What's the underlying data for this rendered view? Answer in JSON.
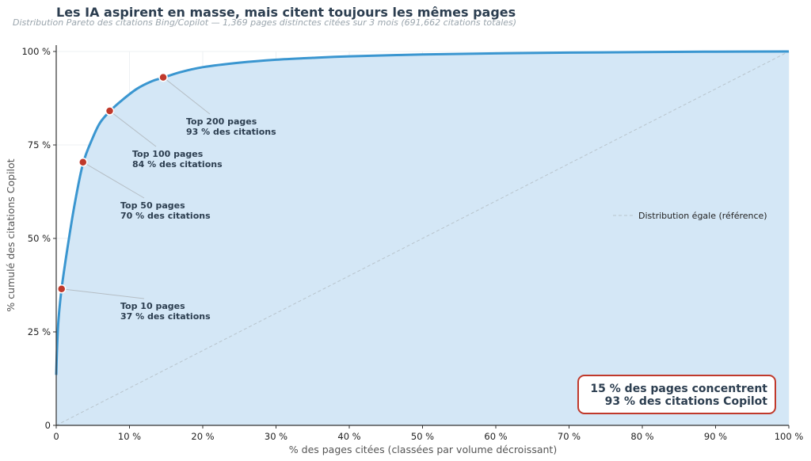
{
  "title": "Les IA aspirent en masse, mais citent toujours les mêmes pages",
  "subtitle": "Distribution Pareto des citations Bing/Copilot — 1,369 pages distinctes citées sur 3 mois (691,662 citations totales)",
  "colors": {
    "curve": "#3a96d0",
    "fill": "#d4e7f6",
    "marker": "#c0392b",
    "reference": "#b8c4cc",
    "text": "#2c3e50"
  },
  "callout": {
    "line1": "15 % des pages concentrent",
    "line2": "93 % des citations Copilot"
  },
  "chart_data": {
    "type": "area",
    "xlabel": "% des pages citées (classées par volume décroissant)",
    "ylabel": "% cumulé des citations Copilot",
    "xlim": [
      0,
      100
    ],
    "ylim": [
      0,
      100
    ],
    "x_ticks": [
      0,
      10,
      20,
      30,
      40,
      50,
      60,
      70,
      80,
      90,
      100
    ],
    "x_tick_labels": [
      "0",
      "10 %",
      "20 %",
      "30 %",
      "40 %",
      "50 %",
      "60 %",
      "70 %",
      "80 %",
      "90 %",
      "100 %"
    ],
    "y_ticks": [
      0,
      25,
      50,
      75,
      100
    ],
    "y_tick_labels": [
      "0",
      "25 %",
      "50 %",
      "75 %",
      "100 %"
    ],
    "grid": true,
    "series": [
      {
        "x": [
          0,
          0.1,
          0.3,
          0.73,
          1.5,
          2.5,
          3.65,
          5.0,
          6.0,
          7.3,
          9.0,
          11.0,
          13.0,
          14.6,
          17.0,
          20.0,
          25.0,
          30.0,
          35.0,
          40.0,
          50.0,
          60.0,
          70.0,
          80.0,
          90.0,
          100.0
        ],
        "y": [
          13.5,
          20,
          28,
          36.5,
          47,
          59,
          70,
          77,
          81,
          84,
          87,
          90,
          92,
          93,
          94.5,
          95.8,
          97,
          97.8,
          98.3,
          98.7,
          99.2,
          99.5,
          99.7,
          99.85,
          99.95,
          100
        ]
      },
      {
        "name": "Distribution égale (référence)",
        "x": [
          0,
          100
        ],
        "y": [
          0,
          100
        ]
      }
    ],
    "legend": {
      "position": "center-right"
    },
    "annotations": [
      {
        "x": 0.73,
        "y": 36.5,
        "line1": "Top 10 pages",
        "line2": "37 % des citations"
      },
      {
        "x": 3.65,
        "y": 70.4,
        "line1": "Top 50 pages",
        "line2": "70 % des citations"
      },
      {
        "x": 7.3,
        "y": 84.1,
        "line1": "Top 100 pages",
        "line2": "84 % des citations"
      },
      {
        "x": 14.6,
        "y": 93.1,
        "line1": "Top 200 pages",
        "line2": "93 % des citations"
      }
    ]
  }
}
